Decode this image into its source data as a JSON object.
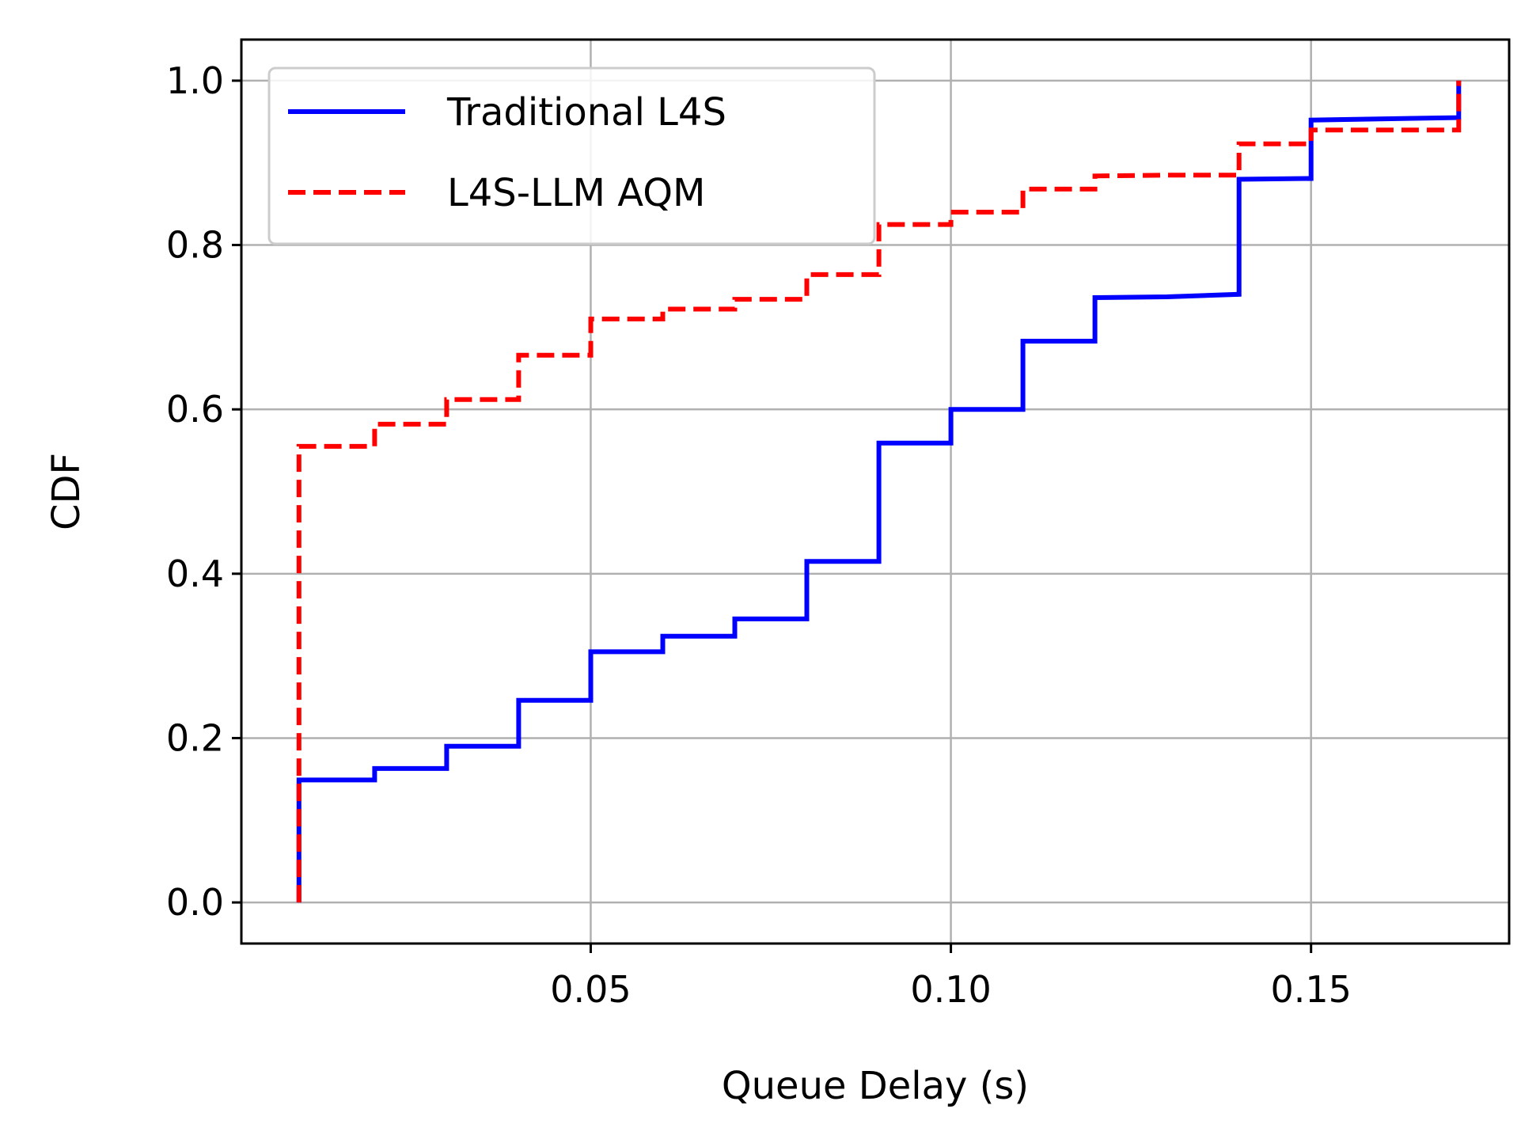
{
  "chart_data": {
    "type": "line",
    "xlabel": "Queue Delay (s)",
    "ylabel": "CDF",
    "xlim": [
      0.0015,
      0.1775
    ],
    "ylim": [
      -0.05,
      1.05
    ],
    "x_ticks": [
      0.05,
      0.1,
      0.15
    ],
    "x_tick_labels": [
      "0.05",
      "0.10",
      "0.15"
    ],
    "y_ticks": [
      0.0,
      0.2,
      0.4,
      0.6,
      0.8,
      1.0
    ],
    "y_tick_labels": [
      "0.0",
      "0.2",
      "0.4",
      "0.6",
      "0.8",
      "1.0"
    ],
    "grid": true,
    "legend_position": "top-left",
    "series": [
      {
        "name": "Traditional L4S",
        "color": "#0000ff",
        "style": "solid",
        "x": [
          0.0095,
          0.0095,
          0.02,
          0.02,
          0.03,
          0.03,
          0.04,
          0.04,
          0.05,
          0.05,
          0.06,
          0.06,
          0.07,
          0.07,
          0.08,
          0.08,
          0.09,
          0.09,
          0.1,
          0.1,
          0.11,
          0.11,
          0.12,
          0.12,
          0.13,
          0.14,
          0.14,
          0.15,
          0.15,
          0.1705,
          0.1705
        ],
        "y": [
          0.0,
          0.149,
          0.149,
          0.163,
          0.163,
          0.19,
          0.19,
          0.246,
          0.246,
          0.305,
          0.305,
          0.324,
          0.324,
          0.345,
          0.345,
          0.415,
          0.415,
          0.559,
          0.559,
          0.6,
          0.6,
          0.683,
          0.683,
          0.736,
          0.737,
          0.74,
          0.88,
          0.881,
          0.952,
          0.955,
          1.0
        ]
      },
      {
        "name": "L4S-LLM AQM",
        "color": "#ff0000",
        "style": "dashed",
        "x": [
          0.0095,
          0.0095,
          0.02,
          0.02,
          0.03,
          0.03,
          0.04,
          0.04,
          0.05,
          0.05,
          0.06,
          0.06,
          0.07,
          0.07,
          0.08,
          0.08,
          0.09,
          0.09,
          0.1,
          0.1,
          0.11,
          0.11,
          0.12,
          0.12,
          0.13,
          0.14,
          0.14,
          0.15,
          0.15,
          0.1705,
          0.1705
        ],
        "y": [
          0.0,
          0.555,
          0.555,
          0.582,
          0.582,
          0.612,
          0.612,
          0.666,
          0.666,
          0.71,
          0.71,
          0.722,
          0.722,
          0.734,
          0.734,
          0.764,
          0.764,
          0.825,
          0.825,
          0.84,
          0.84,
          0.868,
          0.868,
          0.884,
          0.885,
          0.885,
          0.923,
          0.923,
          0.94,
          0.94,
          1.0
        ]
      }
    ]
  }
}
